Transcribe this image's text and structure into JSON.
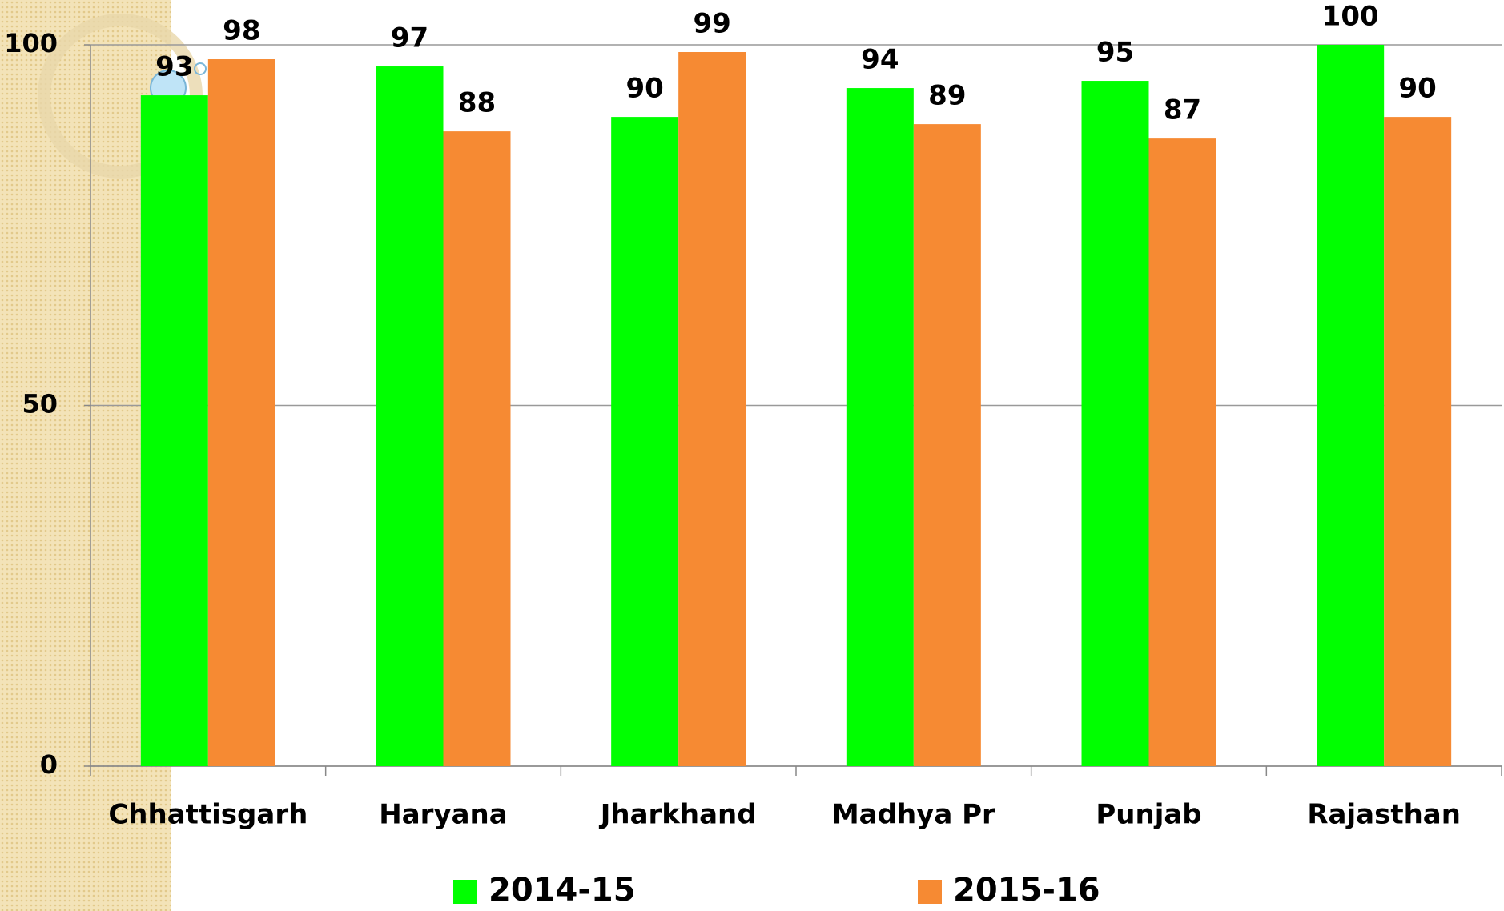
{
  "chart_data": {
    "type": "bar",
    "categories": [
      "Chhattisgarh",
      "Haryana",
      "Jharkhand",
      "Madhya Pr",
      "Punjab",
      "Rajasthan"
    ],
    "series": [
      {
        "name": "2014-15",
        "color": "#00ff00",
        "values": [
          93,
          97,
          90,
          94,
          95,
          100
        ]
      },
      {
        "name": "2015-16",
        "color": "#f68a33",
        "values": [
          98,
          88,
          99,
          89,
          87,
          90
        ]
      }
    ],
    "ylim": [
      0,
      100
    ],
    "yticks": [
      0,
      50,
      100
    ],
    "grid": true,
    "legend": "bottom"
  }
}
